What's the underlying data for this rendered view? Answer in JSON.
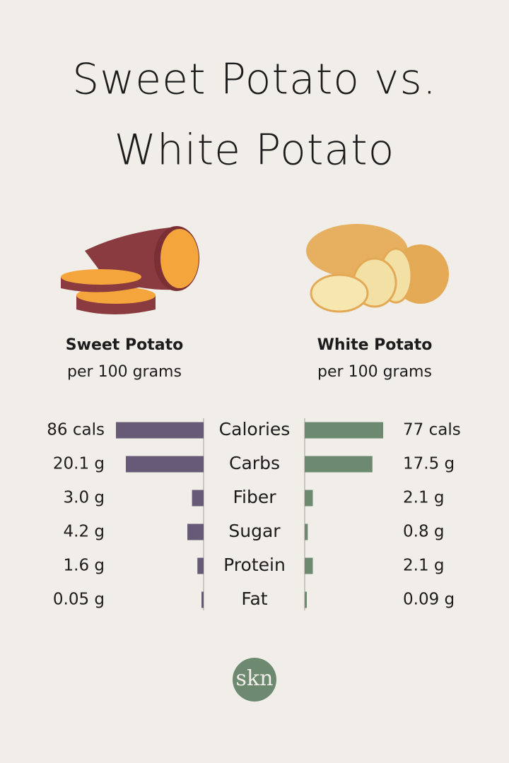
{
  "chart_data": {
    "type": "butterfly",
    "title_lines": [
      "Sweet Potato vs.",
      "White Potato"
    ],
    "categories": [
      "Calories",
      "Carbs",
      "Fiber",
      "Sugar",
      "Protein",
      "Fat"
    ],
    "series": [
      {
        "name": "Sweet Potato",
        "subtitle": "per 100 grams",
        "color": "#675a77",
        "values": [
          86,
          20.1,
          3.0,
          4.2,
          1.6,
          0.05
        ],
        "value_labels": [
          "86 cals",
          "20.1 g",
          "3.0 g",
          "4.2 g",
          "1.6 g",
          "0.05 g"
        ]
      },
      {
        "name": "White Potato",
        "subtitle": "per 100 grams",
        "color": "#6d8a71",
        "values": [
          77,
          17.5,
          2.1,
          0.8,
          2.1,
          0.09
        ],
        "value_labels": [
          "77 cals",
          "17.5 g",
          "2.1 g",
          "0.8 g",
          "2.1 g",
          "0.09 g"
        ]
      }
    ],
    "logo": "skn"
  }
}
